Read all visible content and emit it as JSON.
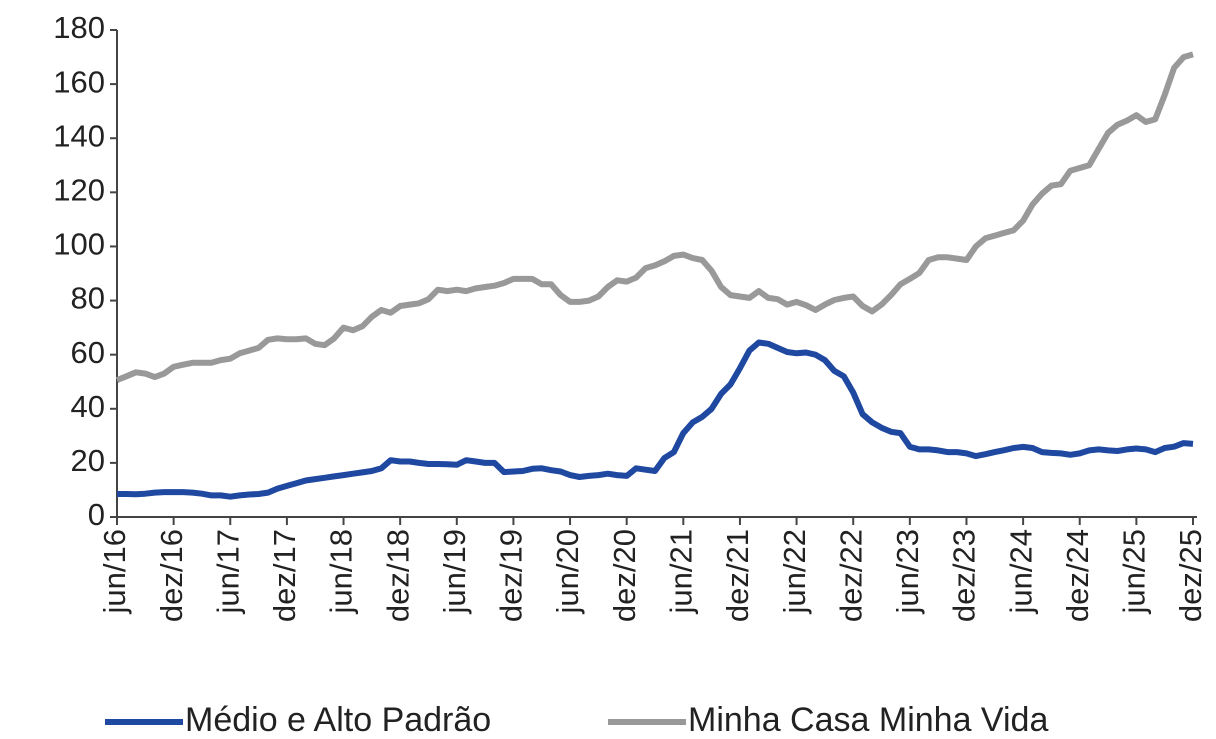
{
  "chart_data": {
    "type": "line",
    "categories": [
      "jun/16",
      null,
      null,
      null,
      null,
      null,
      "dez/16",
      null,
      null,
      null,
      null,
      null,
      "jun/17",
      null,
      null,
      null,
      null,
      null,
      "dez/17",
      null,
      null,
      null,
      null,
      null,
      "jun/18",
      null,
      null,
      null,
      null,
      null,
      "dez/18",
      null,
      null,
      null,
      null,
      null,
      "jun/19",
      null,
      null,
      null,
      null,
      null,
      "dez/19",
      null,
      null,
      null,
      null,
      null,
      "jun/20",
      null,
      null,
      null,
      null,
      null,
      "dez/20",
      null,
      null,
      null,
      null,
      null,
      "jun/21",
      null,
      null,
      null,
      null,
      null,
      "dez/21",
      null,
      null,
      null,
      null,
      null,
      "jun/22",
      null,
      null,
      null,
      null,
      null,
      "dez/22",
      null,
      null,
      null,
      null,
      null,
      "jun/23",
      null,
      null,
      null,
      null,
      null,
      "dez/23",
      null,
      null,
      null,
      null,
      null,
      "jun/24",
      null,
      null,
      null,
      null,
      null,
      "dez/24",
      null,
      null,
      null,
      null,
      null,
      "jun/25",
      null,
      null,
      null,
      null,
      null,
      "dez/25"
    ],
    "series": [
      {
        "name": "Médio e Alto Padrão",
        "color": "#1f48a1",
        "values": [
          8.5,
          8.5,
          8.4,
          8.6,
          9,
          9.2,
          9.2,
          9.2,
          9,
          8.6,
          8,
          8,
          7.5,
          8,
          8.3,
          8.5,
          9,
          10.5,
          11.5,
          12.5,
          13.5,
          14,
          14.5,
          15,
          15.5,
          16,
          16.5,
          17,
          18,
          21,
          20.5,
          20.5,
          20,
          19.6,
          19.6,
          19.5,
          19.3,
          21,
          20.5,
          20,
          20,
          16.6,
          16.8,
          17,
          17.8,
          18,
          17.3,
          16.8,
          15.5,
          14.8,
          15.2,
          15.5,
          16,
          15.5,
          15.2,
          18,
          17.5,
          17,
          21.8,
          24,
          31,
          35,
          37,
          40,
          45.5,
          49,
          55,
          61.5,
          64.5,
          64,
          62.5,
          61,
          60.5,
          60.8,
          60,
          58,
          54,
          52,
          46,
          38,
          35,
          33,
          31.5,
          31,
          26,
          25,
          25,
          24.6,
          24,
          24,
          23.5,
          22.5,
          23.2,
          24,
          24.7,
          25.5,
          25.9,
          25.5,
          24,
          23.7,
          23.5,
          23,
          23.5,
          24.6,
          25,
          24.6,
          24.4,
          25,
          25.3,
          25,
          24,
          25.5,
          26,
          27.3,
          27
        ]
      },
      {
        "name": "Minha Casa Minha Vida",
        "color": "#999999",
        "values": [
          50.6,
          52,
          53.5,
          53,
          51.7,
          53,
          55.5,
          56.3,
          57,
          57,
          57,
          58,
          58.5,
          60.5,
          61.5,
          62.5,
          65.5,
          66,
          65.7,
          65.7,
          66,
          64,
          63.5,
          66,
          70,
          69,
          70.5,
          74,
          76.5,
          75.5,
          78,
          78.5,
          79,
          80.5,
          84,
          83.5,
          84,
          83.5,
          84.5,
          85,
          85.5,
          86.5,
          88,
          88,
          88,
          86,
          86,
          82,
          79.5,
          79.5,
          80,
          81.5,
          85,
          87.5,
          87,
          88.5,
          92,
          93,
          94.5,
          96.5,
          97,
          95.7,
          95,
          91,
          85,
          82,
          81.5,
          81,
          83.5,
          81,
          80.5,
          78.5,
          79.5,
          78.3,
          76.5,
          78.5,
          80.2,
          81,
          81.5,
          78,
          76,
          78.5,
          82,
          86,
          88,
          90.2,
          95,
          96,
          96,
          95.5,
          95,
          100,
          103,
          104,
          105,
          106,
          109.5,
          115.5,
          119.5,
          122.5,
          123,
          128,
          129,
          130,
          136,
          142,
          145,
          146.5,
          148.5,
          146,
          147,
          156,
          166,
          170,
          171
        ]
      }
    ],
    "ylim": [
      0,
      180
    ],
    "yticks": [
      0,
      20,
      40,
      60,
      80,
      100,
      120,
      140,
      160,
      180
    ],
    "grid": false,
    "legend": "bottom"
  }
}
